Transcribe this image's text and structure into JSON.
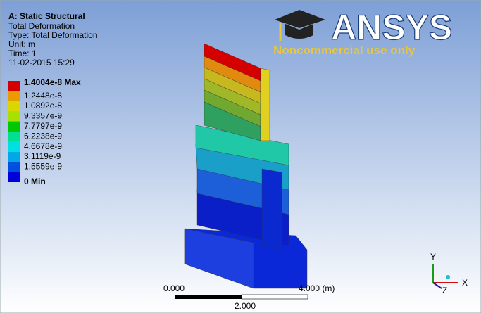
{
  "header": {
    "title": "A: Static Structural",
    "lines": [
      "Total Deformation",
      "Type: Total Deformation",
      "Unit: m",
      "Time: 1",
      "11-02-2015 15:29"
    ]
  },
  "legend": [
    {
      "label": "1.4004e-8 Max",
      "color": "#d40000"
    },
    {
      "label": "1.2448e-8",
      "color": "#e89c00"
    },
    {
      "label": "1.0892e-8",
      "color": "#d8d800"
    },
    {
      "label": "9.3357e-9",
      "color": "#a8e000"
    },
    {
      "label": "7.7797e-9",
      "color": "#00c800"
    },
    {
      "label": "6.2238e-9",
      "color": "#00e090"
    },
    {
      "label": "4.6678e-9",
      "color": "#00e0e0"
    },
    {
      "label": "3.1119e-9",
      "color": "#00a8e8"
    },
    {
      "label": "1.5559e-9",
      "color": "#0050e0"
    },
    {
      "label": "0 Min",
      "color": "#0000d8"
    }
  ],
  "logo": {
    "name": "ANSYS",
    "notice": "Noncommercial use only"
  },
  "scale": {
    "start": "0.000",
    "end": "4.000 (m)",
    "middle": "2.000"
  },
  "triad": {
    "x": "X",
    "y": "Y",
    "z": "Z"
  }
}
